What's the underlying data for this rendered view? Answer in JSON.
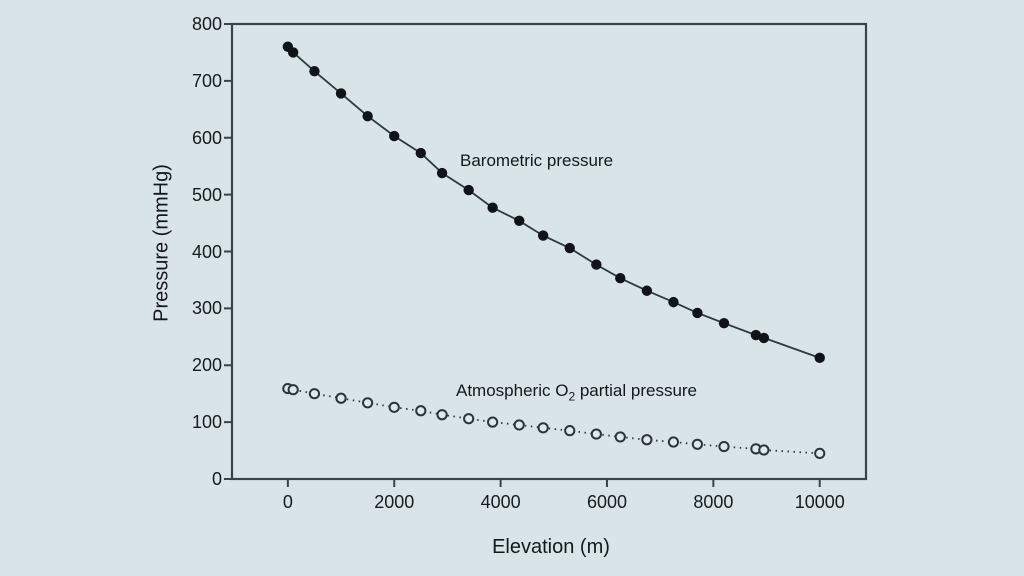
{
  "figure": {
    "background_color": "#d9e4e8",
    "axis_color": "#39434a",
    "text_color": "#171b1e",
    "marker_fill_color": "#101418",
    "open_marker_fill_color": "#dfe9ec",
    "line_color": "#2f383e"
  },
  "chart_data": {
    "type": "line",
    "title": "",
    "xlabel": "Elevation (m)",
    "ylabel": "Pressure (mmHg)",
    "xlim": [
      -1050,
      10870
    ],
    "ylim": [
      0,
      800
    ],
    "x_ticks": [
      0,
      2000,
      4000,
      6000,
      8000,
      10000
    ],
    "y_ticks": [
      0,
      100,
      200,
      300,
      400,
      500,
      600,
      700,
      800
    ],
    "grid": false,
    "legend_position": "inline-annotations",
    "x": [
      0,
      100,
      500,
      1000,
      1500,
      2000,
      2500,
      2900,
      3400,
      3850,
      4350,
      4800,
      5300,
      5800,
      6250,
      6750,
      7250,
      7700,
      8200,
      8800,
      8950,
      10000
    ],
    "series": [
      {
        "name": "barometric-pressure",
        "label": "Barometric pressure",
        "marker": "filled-circle",
        "line_style": "solid",
        "values": [
          760,
          750,
          717,
          678,
          638,
          603,
          573,
          538,
          508,
          477,
          454,
          428,
          406,
          377,
          353,
          331,
          311,
          292,
          274,
          253,
          248,
          213
        ]
      },
      {
        "name": "atmospheric-o2-partial-pressure",
        "label_prefix": "Atmospheric O",
        "label_sub": "2",
        "label_suffix": " partial pressure",
        "marker": "open-circle",
        "line_style": "dotted",
        "values": [
          159,
          157,
          150,
          142,
          134,
          126,
          120,
          113,
          106,
          100,
          95,
          90,
          85,
          79,
          74,
          69,
          65,
          61,
          57,
          53,
          51,
          45
        ]
      }
    ]
  }
}
